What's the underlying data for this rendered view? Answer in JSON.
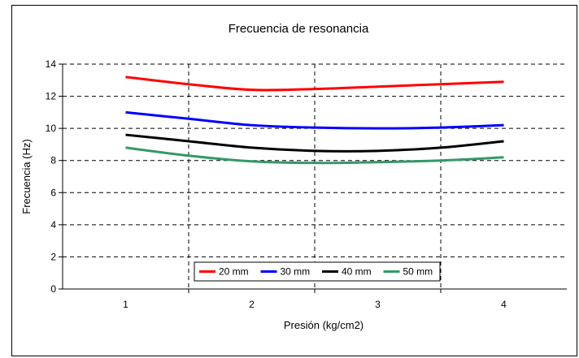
{
  "chart_data": {
    "type": "line",
    "title": "Frecuencia de resonancia",
    "xlabel": "Presión (kg/cm2)",
    "ylabel": "Frecuencia (Hz)",
    "x_ticks": [
      "1",
      "2",
      "3",
      "4"
    ],
    "y_ticks": [
      "0",
      "2",
      "4",
      "6",
      "8",
      "10",
      "12",
      "14"
    ],
    "xlim": [
      0.5,
      4.5
    ],
    "ylim": [
      0,
      14
    ],
    "grid": "dashed",
    "legend_position": "bottom-center",
    "series": [
      {
        "name": "20 mm",
        "color": "#ff0000",
        "x": [
          1,
          1.5,
          2,
          2.5,
          3,
          3.5,
          4
        ],
        "y": [
          13.2,
          12.75,
          12.4,
          12.45,
          12.6,
          12.75,
          12.9
        ]
      },
      {
        "name": "30 mm",
        "color": "#0000ff",
        "x": [
          1,
          1.5,
          2,
          2.5,
          3,
          3.5,
          4
        ],
        "y": [
          11.0,
          10.6,
          10.2,
          10.05,
          10.0,
          10.05,
          10.2
        ]
      },
      {
        "name": "40 mm",
        "color": "#000000",
        "x": [
          1,
          1.5,
          2,
          2.5,
          3,
          3.5,
          4
        ],
        "y": [
          9.6,
          9.2,
          8.8,
          8.6,
          8.6,
          8.8,
          9.2
        ]
      },
      {
        "name": "50 mm",
        "color": "#339966",
        "x": [
          1,
          1.5,
          2,
          2.5,
          3,
          3.5,
          4
        ],
        "y": [
          8.8,
          8.3,
          7.95,
          7.85,
          7.9,
          8.0,
          8.2
        ]
      }
    ]
  }
}
